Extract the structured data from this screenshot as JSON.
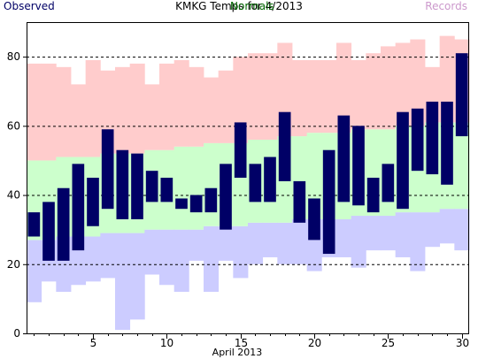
{
  "chart_data": {
    "type": "bar",
    "title": "KMKG Temps for 4/2013",
    "xlabel": "April 2013",
    "ylabel": "",
    "legend": {
      "observed": "Observed",
      "normals": "Normals",
      "records": "Records"
    },
    "xlim": [
      0.5,
      30.5
    ],
    "ylim": [
      0,
      90
    ],
    "xticks": [
      5,
      10,
      15,
      20,
      25,
      30
    ],
    "yticks": [
      0,
      20,
      40,
      60,
      80
    ],
    "grid_y": [
      20,
      40,
      60,
      80
    ],
    "days": [
      1,
      2,
      3,
      4,
      5,
      6,
      7,
      8,
      9,
      10,
      11,
      12,
      13,
      14,
      15,
      16,
      17,
      18,
      19,
      20,
      21,
      22,
      23,
      24,
      25,
      26,
      27,
      28,
      29,
      30
    ],
    "record_low": [
      9,
      15,
      12,
      14,
      15,
      16,
      1,
      4,
      17,
      14,
      12,
      21,
      12,
      21,
      16,
      20,
      22,
      20,
      20,
      18,
      22,
      22,
      19,
      24,
      24,
      22,
      18,
      25,
      26,
      24
    ],
    "normal_low": [
      27,
      27,
      28,
      28,
      28,
      29,
      29,
      29,
      30,
      30,
      30,
      30,
      31,
      31,
      31,
      32,
      32,
      32,
      33,
      33,
      33,
      33,
      34,
      34,
      34,
      35,
      35,
      35,
      36,
      36
    ],
    "normal_high": [
      50,
      50,
      51,
      51,
      51,
      52,
      52,
      52,
      53,
      53,
      54,
      54,
      55,
      55,
      55,
      56,
      56,
      57,
      57,
      58,
      58,
      58,
      59,
      59,
      59,
      60,
      60,
      61,
      61,
      61
    ],
    "record_high": [
      78,
      78,
      77,
      72,
      79,
      76,
      77,
      78,
      72,
      78,
      79,
      77,
      74,
      76,
      80,
      81,
      81,
      84,
      79,
      79,
      79,
      84,
      79,
      81,
      83,
      84,
      85,
      77,
      86,
      85
    ],
    "observed_low": [
      28,
      21,
      21,
      24,
      31,
      36,
      33,
      33,
      38,
      38,
      36,
      35,
      35,
      30,
      45,
      38,
      38,
      44,
      32,
      27,
      23,
      38,
      37,
      35,
      38,
      36,
      47,
      46,
      43,
      57
    ],
    "observed_high": [
      35,
      38,
      42,
      49,
      45,
      59,
      53,
      52,
      47,
      45,
      39,
      40,
      42,
      49,
      61,
      49,
      51,
      64,
      44,
      39,
      53,
      63,
      60,
      45,
      49,
      64,
      65,
      67,
      67,
      81
    ],
    "colors": {
      "observed": "#000066",
      "normals_band": "#ccffcc",
      "record_high_band": "#ffcccc",
      "record_low_band": "#ccccff",
      "normals_text": "#006600",
      "records_text": "#cc99cc",
      "observed_text": "#000066"
    }
  }
}
